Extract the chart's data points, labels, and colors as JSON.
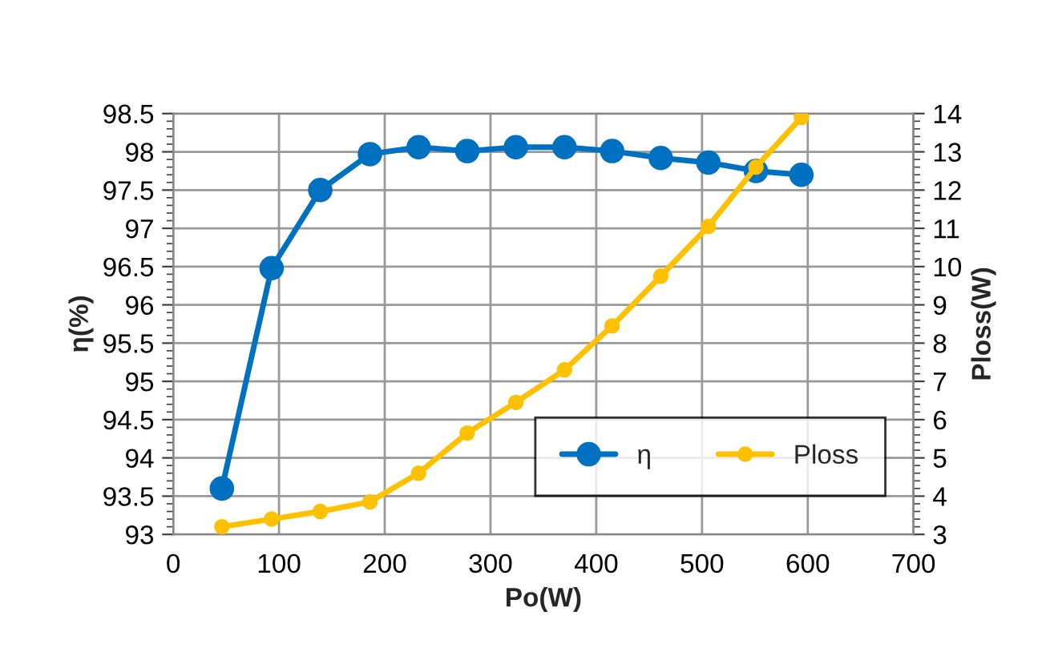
{
  "chart_data": {
    "type": "line",
    "xlabel": "Po(W)",
    "ylabel": "η(%)",
    "y2label": "Ploss(W)",
    "x": [
      46,
      93,
      139,
      186,
      232,
      278,
      324,
      370,
      415,
      461,
      506,
      551,
      594
    ],
    "series": [
      {
        "name": "η",
        "color": "#0070c0",
        "values": [
          93.6,
          96.48,
          97.5,
          97.97,
          98.06,
          98.01,
          98.06,
          98.06,
          98.01,
          97.92,
          97.86,
          97.75,
          97.7
        ]
      },
      {
        "name": "Ploss",
        "color": "#ffc000",
        "axis": "y2",
        "values": [
          3.2,
          3.4,
          3.6,
          3.85,
          4.6,
          5.65,
          6.45,
          7.3,
          8.45,
          9.75,
          11.05,
          12.6,
          13.9
        ]
      }
    ],
    "xlim": [
      0,
      700
    ],
    "xticks": [
      0,
      100,
      200,
      300,
      400,
      500,
      600,
      700
    ],
    "ylim": [
      93,
      98.5
    ],
    "yticks": [
      93,
      93.5,
      94,
      94.5,
      95,
      95.5,
      96,
      96.5,
      97,
      97.5,
      98,
      98.5
    ],
    "y2lim": [
      3,
      14
    ],
    "y2ticks": [
      3,
      4,
      5,
      6,
      7,
      8,
      9,
      10,
      11,
      12,
      13,
      14
    ],
    "grid": true,
    "legend": "bottom right",
    "marker": "circle",
    "line_style": "solid"
  }
}
